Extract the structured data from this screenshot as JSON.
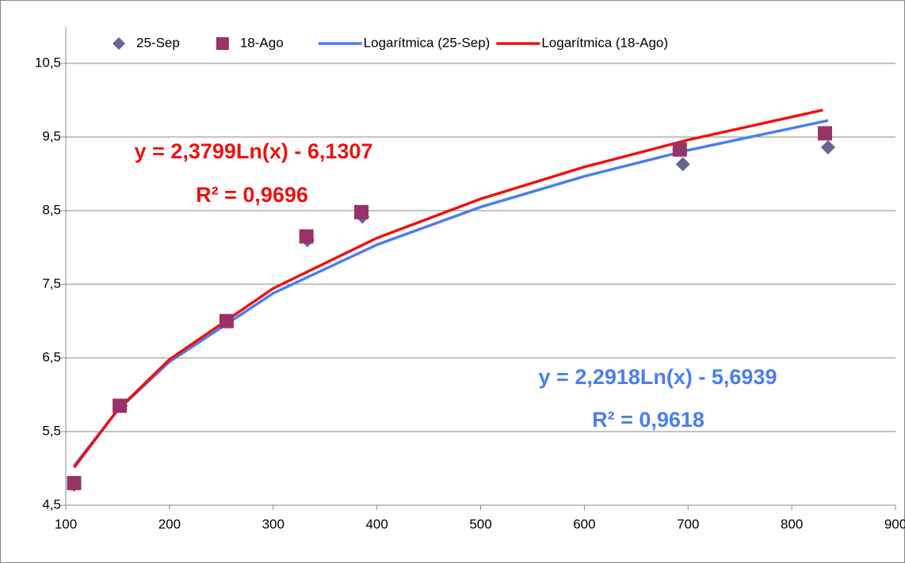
{
  "chart_data": {
    "type": "scatter",
    "series": [
      {
        "name": "25-Sep",
        "type": "scatter",
        "marker": "diamond",
        "color": "#666699",
        "x": [
          108,
          153,
          255,
          333,
          386,
          695,
          835
        ],
        "values": [
          4.78,
          5.85,
          6.99,
          8.1,
          8.42,
          9.13,
          9.36
        ]
      },
      {
        "name": "18-Ago",
        "type": "scatter",
        "marker": "square",
        "color": "#993366",
        "x": [
          108,
          152,
          255,
          332,
          385,
          692,
          832
        ],
        "values": [
          4.8,
          5.85,
          7.0,
          8.15,
          8.48,
          9.33,
          9.55
        ]
      },
      {
        "name": "Logarítmica (25-Sep)",
        "type": "line",
        "color": "#4a7ef0",
        "x": [
          108,
          150,
          200,
          300,
          400,
          500,
          600,
          700,
          835
        ],
        "values": [
          5.036,
          5.789,
          6.449,
          7.378,
          8.037,
          8.549,
          8.966,
          9.32,
          9.724
        ]
      },
      {
        "name": "Logarítmica (18-Ago)",
        "type": "line",
        "color": "#ee1111",
        "x": [
          108,
          150,
          200,
          300,
          400,
          500,
          600,
          700,
          830
        ],
        "values": [
          5.012,
          5.794,
          6.479,
          7.444,
          8.128,
          8.659,
          9.093,
          9.46,
          9.866
        ]
      }
    ],
    "annotations": [
      {
        "text": "y = 2,3799Ln(x) - 6,1307",
        "color": "#ee1111"
      },
      {
        "text": "R² = 0,9696",
        "color": "#ee1111"
      },
      {
        "text": "y = 2,2918Ln(x) - 5,6939",
        "color": "#4a7ef0"
      },
      {
        "text": "R² = 0,9618",
        "color": "#4a7ef0"
      }
    ],
    "xlim": [
      100,
      900
    ],
    "xticks": [
      100,
      200,
      300,
      400,
      500,
      600,
      700,
      800,
      900
    ],
    "ylim": [
      4.5,
      11
    ],
    "yticks": [
      {
        "value": 4.5,
        "label": "4,5"
      },
      {
        "value": 5.5,
        "label": "5,5"
      },
      {
        "value": 6.5,
        "label": "6,5"
      },
      {
        "value": 7.5,
        "label": "7,5"
      },
      {
        "value": 8.5,
        "label": "8,5"
      },
      {
        "value": 9.5,
        "label": "9,5"
      },
      {
        "value": 10.5,
        "label": "10,5"
      }
    ],
    "grid": true,
    "legend": "top"
  }
}
